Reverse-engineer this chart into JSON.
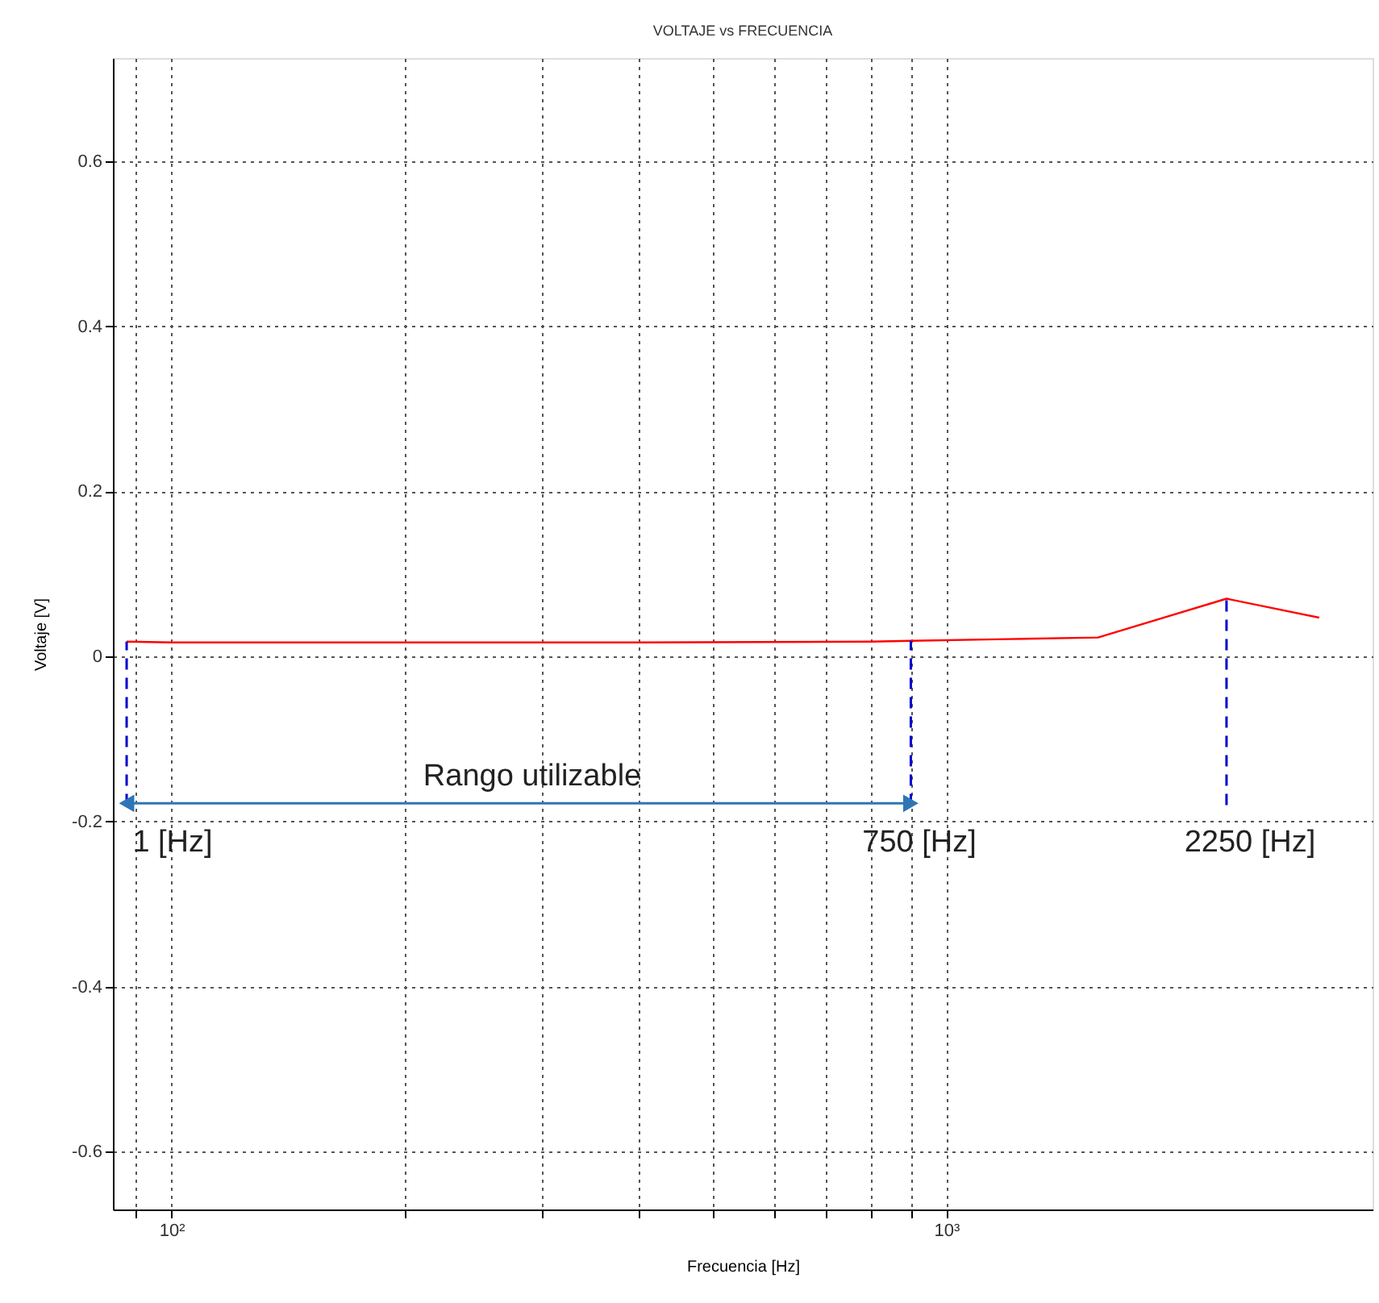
{
  "chart_data": {
    "type": "line",
    "title": "VOLTAJE vs FRECUENCIA",
    "xlabel": "Frecuencia [Hz]",
    "ylabel": "Voltaje [V]",
    "log": "x",
    "grid": true,
    "line_style": "solid",
    "marker": "none",
    "xlim": [
      84,
      3550
    ],
    "ylim": [
      -0.67,
      0.725
    ],
    "xticks": [
      {
        "value": 90,
        "label": null
      },
      {
        "value": 100,
        "label": "10²"
      },
      {
        "value": 200,
        "label": null
      },
      {
        "value": 300,
        "label": null
      },
      {
        "value": 400,
        "label": null
      },
      {
        "value": 500,
        "label": null
      },
      {
        "value": 600,
        "label": null
      },
      {
        "value": 700,
        "label": null
      },
      {
        "value": 800,
        "label": null
      },
      {
        "value": 900,
        "label": null
      },
      {
        "value": 1000,
        "label": "10³"
      }
    ],
    "yticks": [
      -0.6,
      -0.4,
      -0.2,
      0,
      0.2,
      0.4,
      0.6
    ],
    "series": [
      {
        "color": "#ff0000",
        "x": [
          87.5,
          100,
          200,
          400,
          800,
          900,
          1200,
          1570,
          2300,
          3030
        ],
        "values": [
          0.018,
          0.017,
          0.017,
          0.017,
          0.018,
          0.019,
          0.021,
          0.023,
          0.07,
          0.047
        ]
      },
      {
        "color": "#0000cc",
        "line_style": "dashed",
        "x": [
          87.5,
          87.5
        ],
        "values": [
          -0.18,
          0.018
        ]
      },
      {
        "color": "#0000cc",
        "line_style": "dashed",
        "x": [
          900,
          900
        ],
        "values": [
          -0.18,
          0.019
        ]
      },
      {
        "color": "#0000cc",
        "line_style": "dashed",
        "x": [
          2300,
          2300
        ],
        "values": [
          -0.18,
          0.07
        ]
      },
      {
        "color": "#2e75b6",
        "marker": "triangle",
        "x": [
          87.5,
          900
        ],
        "values": [
          -0.178,
          -0.178
        ]
      }
    ],
    "annotations": [
      "Rango utilizable",
      "1 [Hz]",
      "750 [Hz]",
      "2250 [Hz]"
    ]
  }
}
